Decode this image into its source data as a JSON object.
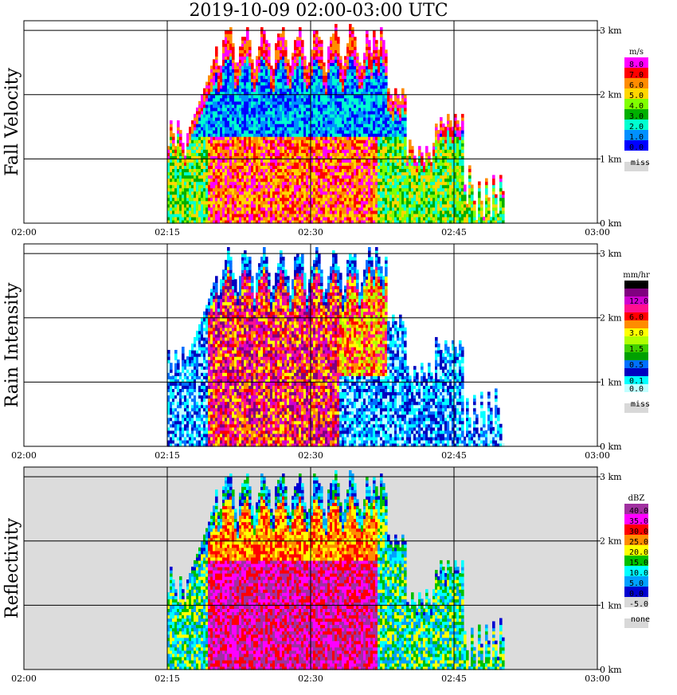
{
  "title": "2019-10-09   02:00-03:00 UTC",
  "panels": [
    {
      "name": "fall-velocity",
      "ylabel": "Fall Velocity",
      "unit": "m/s",
      "legend": [
        {
          "label": "8.0",
          "color": "#ff00ff"
        },
        {
          "label": "7.0",
          "color": "#ff0000"
        },
        {
          "label": "6.0",
          "color": "#ff8c00"
        },
        {
          "label": "5.0",
          "color": "#ffd700"
        },
        {
          "label": "4.0",
          "color": "#80ff00"
        },
        {
          "label": "3.0",
          "color": "#00b000"
        },
        {
          "label": "2.0",
          "color": "#00ffd0"
        },
        {
          "label": "1.0",
          "color": "#0090ff"
        },
        {
          "label": "0.0",
          "color": "#0000ff"
        }
      ],
      "missing_label": "miss",
      "background": "#ffffff"
    },
    {
      "name": "rain-intensity",
      "ylabel": "Rain Intensity",
      "unit": "mm/hr",
      "legend": [
        {
          "label": "48.0",
          "color": "#000000"
        },
        {
          "label": "",
          "color": "#800080"
        },
        {
          "label": "12.0",
          "color": "#d000d0"
        },
        {
          "label": "",
          "color": "#ff1090"
        },
        {
          "label": "6.0",
          "color": "#ff0000"
        },
        {
          "label": "",
          "color": "#ff8c00"
        },
        {
          "label": "3.0",
          "color": "#ffff00"
        },
        {
          "label": "",
          "color": "#b0ff00"
        },
        {
          "label": "1.5",
          "color": "#40d000"
        },
        {
          "label": "",
          "color": "#00a000"
        },
        {
          "label": "0.5",
          "color": "#0070ff"
        },
        {
          "label": "",
          "color": "#0000c0"
        },
        {
          "label": "0.1",
          "color": "#00ffff"
        },
        {
          "label": "0.0",
          "color": "#c0ffff"
        }
      ],
      "missing_label": "miss",
      "background": "#ffffff"
    },
    {
      "name": "reflectivity",
      "ylabel": "Reflectivity",
      "unit": "dBZ",
      "legend": [
        {
          "label": "40.0",
          "color": "#a030a0"
        },
        {
          "label": "35.0",
          "color": "#ff00ff"
        },
        {
          "label": "30.0",
          "color": "#ff0000"
        },
        {
          "label": "25.0",
          "color": "#ff8c00"
        },
        {
          "label": "20.0",
          "color": "#ffff00"
        },
        {
          "label": "15.0",
          "color": "#00c000"
        },
        {
          "label": "10.0",
          "color": "#00ffff"
        },
        {
          "label": "5.0",
          "color": "#00a0ff"
        },
        {
          "label": "0.0",
          "color": "#0000d0"
        },
        {
          "label": "-5.0",
          "color": "#d8d8d8"
        }
      ],
      "missing_label": "none",
      "background": "#dcdcdc"
    }
  ],
  "chart_data": {
    "type": "heatmap",
    "x_ticks": [
      "02:00",
      "02:15",
      "02:30",
      "02:45",
      "03:00"
    ],
    "y_ticks": [
      "0 km",
      "1 km",
      "2 km",
      "3 km"
    ],
    "xlim": [
      "02:00",
      "03:00"
    ],
    "ylim_km": [
      0,
      3.15
    ],
    "grid": true,
    "legend_position": "right",
    "precipitation_start": "02:15",
    "precipitation_end": "02:50",
    "max_echo_top_km": 3.15
  },
  "colors": {
    "missing": "#d8d8d8"
  }
}
